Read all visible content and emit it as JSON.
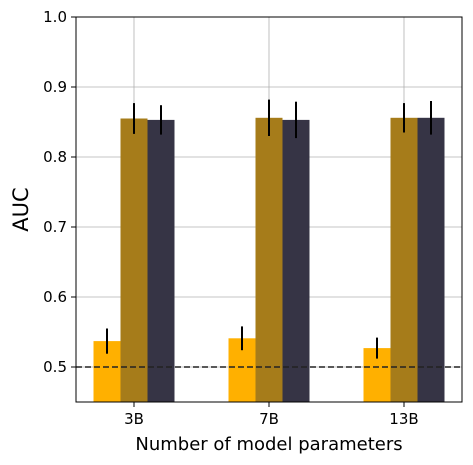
{
  "chart_data": {
    "type": "bar",
    "title": "",
    "xlabel": "Number of model parameters",
    "ylabel": "AUC",
    "categories": [
      "3B",
      "7B",
      "13B"
    ],
    "ylim": [
      0.45,
      1.0
    ],
    "yticks": [
      "0.5",
      "0.6",
      "0.7",
      "0.8",
      "0.9",
      "1.0"
    ],
    "grid": true,
    "legend": "none",
    "reference_line": {
      "y": 0.5,
      "style": "dashed",
      "color": "#222222"
    },
    "series": [
      {
        "color": "#FFB000",
        "values": [
          0.537,
          0.541,
          0.527
        ],
        "errors": [
          0.018,
          0.017,
          0.015
        ]
      },
      {
        "color": "#A67C1A",
        "values": [
          0.855,
          0.856,
          0.856
        ],
        "errors": [
          0.022,
          0.026,
          0.021
        ]
      },
      {
        "color": "#363445",
        "values": [
          0.853,
          0.853,
          0.856
        ],
        "errors": [
          0.021,
          0.026,
          0.024
        ]
      }
    ]
  }
}
